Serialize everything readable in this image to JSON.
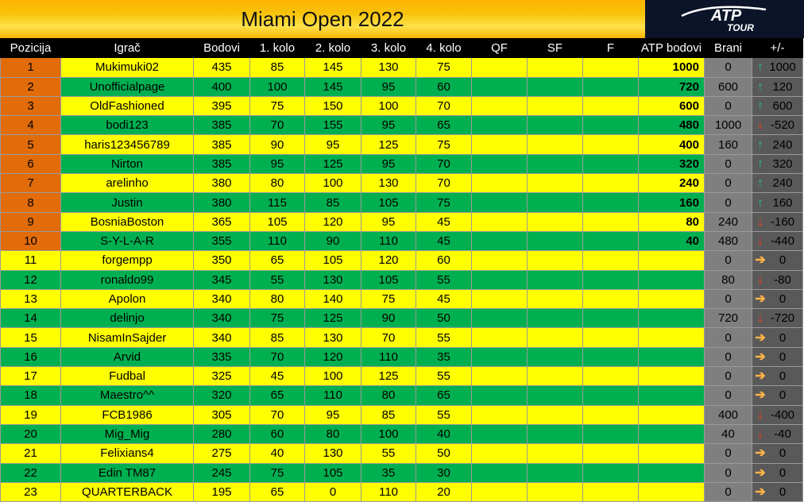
{
  "title": "Miami Open 2022",
  "logo": {
    "main": "ATP",
    "sub": "TOUR"
  },
  "colors": {
    "yellow": "#ffff00",
    "green": "#00b050",
    "orange": "#e26b0a",
    "header": "#000000"
  },
  "headers": [
    "Pozicija",
    "Igrač",
    "Bodovi",
    "1. kolo",
    "2. kolo",
    "3. kolo",
    "4. kolo",
    "QF",
    "SF",
    "F",
    "ATP bodovi",
    "Brani",
    "+/-"
  ],
  "rows": [
    {
      "pos": "1",
      "player": "Mukimuki02",
      "bodovi": "435",
      "r1": "85",
      "r2": "145",
      "r3": "130",
      "r4": "75",
      "qf": "",
      "sf": "",
      "f": "",
      "atp": "1000",
      "brani": "0",
      "diff": "1000",
      "trend": "up"
    },
    {
      "pos": "2",
      "player": "Unofficialpage",
      "bodovi": "400",
      "r1": "100",
      "r2": "145",
      "r3": "95",
      "r4": "60",
      "qf": "",
      "sf": "",
      "f": "",
      "atp": "720",
      "brani": "600",
      "diff": "120",
      "trend": "up"
    },
    {
      "pos": "3",
      "player": "OldFashioned",
      "bodovi": "395",
      "r1": "75",
      "r2": "150",
      "r3": "100",
      "r4": "70",
      "qf": "",
      "sf": "",
      "f": "",
      "atp": "600",
      "brani": "0",
      "diff": "600",
      "trend": "up"
    },
    {
      "pos": "4",
      "player": "bodi123",
      "bodovi": "385",
      "r1": "70",
      "r2": "155",
      "r3": "95",
      "r4": "65",
      "qf": "",
      "sf": "",
      "f": "",
      "atp": "480",
      "brani": "1000",
      "diff": "-520",
      "trend": "down"
    },
    {
      "pos": "5",
      "player": "haris123456789",
      "bodovi": "385",
      "r1": "90",
      "r2": "95",
      "r3": "125",
      "r4": "75",
      "qf": "",
      "sf": "",
      "f": "",
      "atp": "400",
      "brani": "160",
      "diff": "240",
      "trend": "up"
    },
    {
      "pos": "6",
      "player": "Nirton",
      "bodovi": "385",
      "r1": "95",
      "r2": "125",
      "r3": "95",
      "r4": "70",
      "qf": "",
      "sf": "",
      "f": "",
      "atp": "320",
      "brani": "0",
      "diff": "320",
      "trend": "up"
    },
    {
      "pos": "7",
      "player": "arelinho",
      "bodovi": "380",
      "r1": "80",
      "r2": "100",
      "r3": "130",
      "r4": "70",
      "qf": "",
      "sf": "",
      "f": "",
      "atp": "240",
      "brani": "0",
      "diff": "240",
      "trend": "up"
    },
    {
      "pos": "8",
      "player": "Justin",
      "bodovi": "380",
      "r1": "115",
      "r2": "85",
      "r3": "105",
      "r4": "75",
      "qf": "",
      "sf": "",
      "f": "",
      "atp": "160",
      "brani": "0",
      "diff": "160",
      "trend": "up"
    },
    {
      "pos": "9",
      "player": "BosniaBoston",
      "bodovi": "365",
      "r1": "105",
      "r2": "120",
      "r3": "95",
      "r4": "45",
      "qf": "",
      "sf": "",
      "f": "",
      "atp": "80",
      "brani": "240",
      "diff": "-160",
      "trend": "down"
    },
    {
      "pos": "10",
      "player": "S-Y-L-A-R",
      "bodovi": "355",
      "r1": "110",
      "r2": "90",
      "r3": "110",
      "r4": "45",
      "qf": "",
      "sf": "",
      "f": "",
      "atp": "40",
      "brani": "480",
      "diff": "-440",
      "trend": "down"
    },
    {
      "pos": "11",
      "player": "forgempp",
      "bodovi": "350",
      "r1": "65",
      "r2": "105",
      "r3": "120",
      "r4": "60",
      "qf": "",
      "sf": "",
      "f": "",
      "atp": "",
      "brani": "0",
      "diff": "0",
      "trend": "flat"
    },
    {
      "pos": "12",
      "player": "ronaldo99",
      "bodovi": "345",
      "r1": "55",
      "r2": "130",
      "r3": "105",
      "r4": "55",
      "qf": "",
      "sf": "",
      "f": "",
      "atp": "",
      "brani": "80",
      "diff": "-80",
      "trend": "down"
    },
    {
      "pos": "13",
      "player": "Apolon",
      "bodovi": "340",
      "r1": "80",
      "r2": "140",
      "r3": "75",
      "r4": "45",
      "qf": "",
      "sf": "",
      "f": "",
      "atp": "",
      "brani": "0",
      "diff": "0",
      "trend": "flat"
    },
    {
      "pos": "14",
      "player": "delinjo",
      "bodovi": "340",
      "r1": "75",
      "r2": "125",
      "r3": "90",
      "r4": "50",
      "qf": "",
      "sf": "",
      "f": "",
      "atp": "",
      "brani": "720",
      "diff": "-720",
      "trend": "down"
    },
    {
      "pos": "15",
      "player": "NisamInSajder",
      "bodovi": "340",
      "r1": "85",
      "r2": "130",
      "r3": "70",
      "r4": "55",
      "qf": "",
      "sf": "",
      "f": "",
      "atp": "",
      "brani": "0",
      "diff": "0",
      "trend": "flat"
    },
    {
      "pos": "16",
      "player": "Arvid",
      "bodovi": "335",
      "r1": "70",
      "r2": "120",
      "r3": "110",
      "r4": "35",
      "qf": "",
      "sf": "",
      "f": "",
      "atp": "",
      "brani": "0",
      "diff": "0",
      "trend": "flat"
    },
    {
      "pos": "17",
      "player": "Fudbal",
      "bodovi": "325",
      "r1": "45",
      "r2": "100",
      "r3": "125",
      "r4": "55",
      "qf": "",
      "sf": "",
      "f": "",
      "atp": "",
      "brani": "0",
      "diff": "0",
      "trend": "flat"
    },
    {
      "pos": "18",
      "player": "Maestro^^",
      "bodovi": "320",
      "r1": "65",
      "r2": "110",
      "r3": "80",
      "r4": "65",
      "qf": "",
      "sf": "",
      "f": "",
      "atp": "",
      "brani": "0",
      "diff": "0",
      "trend": "flat"
    },
    {
      "pos": "19",
      "player": "FCB1986",
      "bodovi": "305",
      "r1": "70",
      "r2": "95",
      "r3": "85",
      "r4": "55",
      "qf": "",
      "sf": "",
      "f": "",
      "atp": "",
      "brani": "400",
      "diff": "-400",
      "trend": "down"
    },
    {
      "pos": "20",
      "player": "Mig_Mig",
      "bodovi": "280",
      "r1": "60",
      "r2": "80",
      "r3": "100",
      "r4": "40",
      "qf": "",
      "sf": "",
      "f": "",
      "atp": "",
      "brani": "40",
      "diff": "-40",
      "trend": "down"
    },
    {
      "pos": "21",
      "player": "Felixians4",
      "bodovi": "275",
      "r1": "40",
      "r2": "130",
      "r3": "55",
      "r4": "50",
      "qf": "",
      "sf": "",
      "f": "",
      "atp": "",
      "brani": "0",
      "diff": "0",
      "trend": "flat"
    },
    {
      "pos": "22",
      "player": "Edin TM87",
      "bodovi": "245",
      "r1": "75",
      "r2": "105",
      "r3": "35",
      "r4": "30",
      "qf": "",
      "sf": "",
      "f": "",
      "atp": "",
      "brani": "0",
      "diff": "0",
      "trend": "flat"
    },
    {
      "pos": "23",
      "player": "QUARTERBACK",
      "bodovi": "195",
      "r1": "65",
      "r2": "0",
      "r3": "110",
      "r4": "20",
      "qf": "",
      "sf": "",
      "f": "",
      "atp": "",
      "brani": "0",
      "diff": "0",
      "trend": "flat"
    }
  ]
}
